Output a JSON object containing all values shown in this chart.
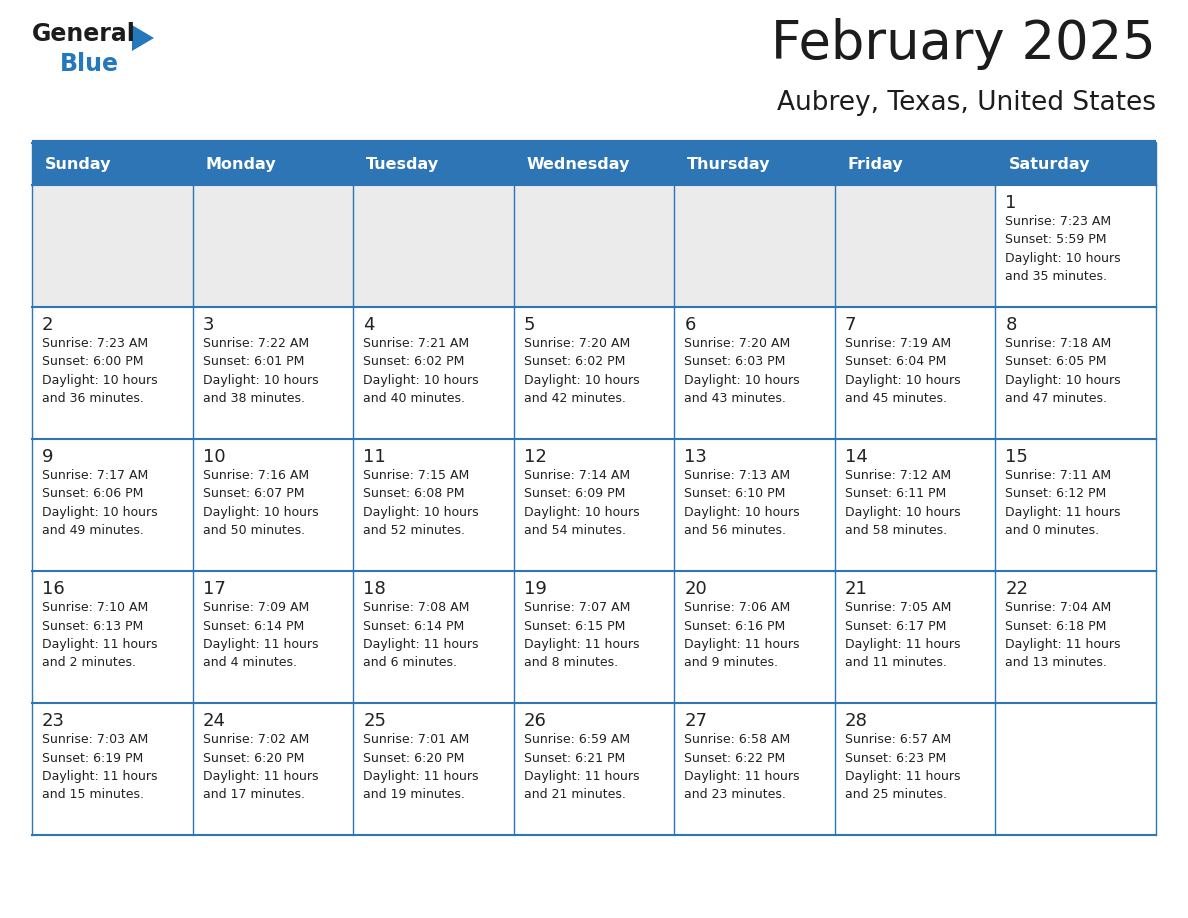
{
  "title": "February 2025",
  "subtitle": "Aubrey, Texas, United States",
  "header_bg": "#2E75B6",
  "header_text_color": "#FFFFFF",
  "cell_bg_light": "#FFFFFF",
  "cell_bg_alt": "#EBEBEB",
  "text_color": "#222222",
  "border_color": "#2E75B6",
  "days_of_week": [
    "Sunday",
    "Monday",
    "Tuesday",
    "Wednesday",
    "Thursday",
    "Friday",
    "Saturday"
  ],
  "calendar_data": [
    [
      null,
      null,
      null,
      null,
      null,
      null,
      {
        "day": "1",
        "sunrise": "Sunrise: 7:23 AM",
        "sunset": "Sunset: 5:59 PM",
        "daylight": "Daylight: 10 hours",
        "daylight2": "and 35 minutes."
      }
    ],
    [
      {
        "day": "2",
        "sunrise": "Sunrise: 7:23 AM",
        "sunset": "Sunset: 6:00 PM",
        "daylight": "Daylight: 10 hours",
        "daylight2": "and 36 minutes."
      },
      {
        "day": "3",
        "sunrise": "Sunrise: 7:22 AM",
        "sunset": "Sunset: 6:01 PM",
        "daylight": "Daylight: 10 hours",
        "daylight2": "and 38 minutes."
      },
      {
        "day": "4",
        "sunrise": "Sunrise: 7:21 AM",
        "sunset": "Sunset: 6:02 PM",
        "daylight": "Daylight: 10 hours",
        "daylight2": "and 40 minutes."
      },
      {
        "day": "5",
        "sunrise": "Sunrise: 7:20 AM",
        "sunset": "Sunset: 6:02 PM",
        "daylight": "Daylight: 10 hours",
        "daylight2": "and 42 minutes."
      },
      {
        "day": "6",
        "sunrise": "Sunrise: 7:20 AM",
        "sunset": "Sunset: 6:03 PM",
        "daylight": "Daylight: 10 hours",
        "daylight2": "and 43 minutes."
      },
      {
        "day": "7",
        "sunrise": "Sunrise: 7:19 AM",
        "sunset": "Sunset: 6:04 PM",
        "daylight": "Daylight: 10 hours",
        "daylight2": "and 45 minutes."
      },
      {
        "day": "8",
        "sunrise": "Sunrise: 7:18 AM",
        "sunset": "Sunset: 6:05 PM",
        "daylight": "Daylight: 10 hours",
        "daylight2": "and 47 minutes."
      }
    ],
    [
      {
        "day": "9",
        "sunrise": "Sunrise: 7:17 AM",
        "sunset": "Sunset: 6:06 PM",
        "daylight": "Daylight: 10 hours",
        "daylight2": "and 49 minutes."
      },
      {
        "day": "10",
        "sunrise": "Sunrise: 7:16 AM",
        "sunset": "Sunset: 6:07 PM",
        "daylight": "Daylight: 10 hours",
        "daylight2": "and 50 minutes."
      },
      {
        "day": "11",
        "sunrise": "Sunrise: 7:15 AM",
        "sunset": "Sunset: 6:08 PM",
        "daylight": "Daylight: 10 hours",
        "daylight2": "and 52 minutes."
      },
      {
        "day": "12",
        "sunrise": "Sunrise: 7:14 AM",
        "sunset": "Sunset: 6:09 PM",
        "daylight": "Daylight: 10 hours",
        "daylight2": "and 54 minutes."
      },
      {
        "day": "13",
        "sunrise": "Sunrise: 7:13 AM",
        "sunset": "Sunset: 6:10 PM",
        "daylight": "Daylight: 10 hours",
        "daylight2": "and 56 minutes."
      },
      {
        "day": "14",
        "sunrise": "Sunrise: 7:12 AM",
        "sunset": "Sunset: 6:11 PM",
        "daylight": "Daylight: 10 hours",
        "daylight2": "and 58 minutes."
      },
      {
        "day": "15",
        "sunrise": "Sunrise: 7:11 AM",
        "sunset": "Sunset: 6:12 PM",
        "daylight": "Daylight: 11 hours",
        "daylight2": "and 0 minutes."
      }
    ],
    [
      {
        "day": "16",
        "sunrise": "Sunrise: 7:10 AM",
        "sunset": "Sunset: 6:13 PM",
        "daylight": "Daylight: 11 hours",
        "daylight2": "and 2 minutes."
      },
      {
        "day": "17",
        "sunrise": "Sunrise: 7:09 AM",
        "sunset": "Sunset: 6:14 PM",
        "daylight": "Daylight: 11 hours",
        "daylight2": "and 4 minutes."
      },
      {
        "day": "18",
        "sunrise": "Sunrise: 7:08 AM",
        "sunset": "Sunset: 6:14 PM",
        "daylight": "Daylight: 11 hours",
        "daylight2": "and 6 minutes."
      },
      {
        "day": "19",
        "sunrise": "Sunrise: 7:07 AM",
        "sunset": "Sunset: 6:15 PM",
        "daylight": "Daylight: 11 hours",
        "daylight2": "and 8 minutes."
      },
      {
        "day": "20",
        "sunrise": "Sunrise: 7:06 AM",
        "sunset": "Sunset: 6:16 PM",
        "daylight": "Daylight: 11 hours",
        "daylight2": "and 9 minutes."
      },
      {
        "day": "21",
        "sunrise": "Sunrise: 7:05 AM",
        "sunset": "Sunset: 6:17 PM",
        "daylight": "Daylight: 11 hours",
        "daylight2": "and 11 minutes."
      },
      {
        "day": "22",
        "sunrise": "Sunrise: 7:04 AM",
        "sunset": "Sunset: 6:18 PM",
        "daylight": "Daylight: 11 hours",
        "daylight2": "and 13 minutes."
      }
    ],
    [
      {
        "day": "23",
        "sunrise": "Sunrise: 7:03 AM",
        "sunset": "Sunset: 6:19 PM",
        "daylight": "Daylight: 11 hours",
        "daylight2": "and 15 minutes."
      },
      {
        "day": "24",
        "sunrise": "Sunrise: 7:02 AM",
        "sunset": "Sunset: 6:20 PM",
        "daylight": "Daylight: 11 hours",
        "daylight2": "and 17 minutes."
      },
      {
        "day": "25",
        "sunrise": "Sunrise: 7:01 AM",
        "sunset": "Sunset: 6:20 PM",
        "daylight": "Daylight: 11 hours",
        "daylight2": "and 19 minutes."
      },
      {
        "day": "26",
        "sunrise": "Sunrise: 6:59 AM",
        "sunset": "Sunset: 6:21 PM",
        "daylight": "Daylight: 11 hours",
        "daylight2": "and 21 minutes."
      },
      {
        "day": "27",
        "sunrise": "Sunrise: 6:58 AM",
        "sunset": "Sunset: 6:22 PM",
        "daylight": "Daylight: 11 hours",
        "daylight2": "and 23 minutes."
      },
      {
        "day": "28",
        "sunrise": "Sunrise: 6:57 AM",
        "sunset": "Sunset: 6:23 PM",
        "daylight": "Daylight: 11 hours",
        "daylight2": "and 25 minutes."
      },
      null
    ]
  ]
}
